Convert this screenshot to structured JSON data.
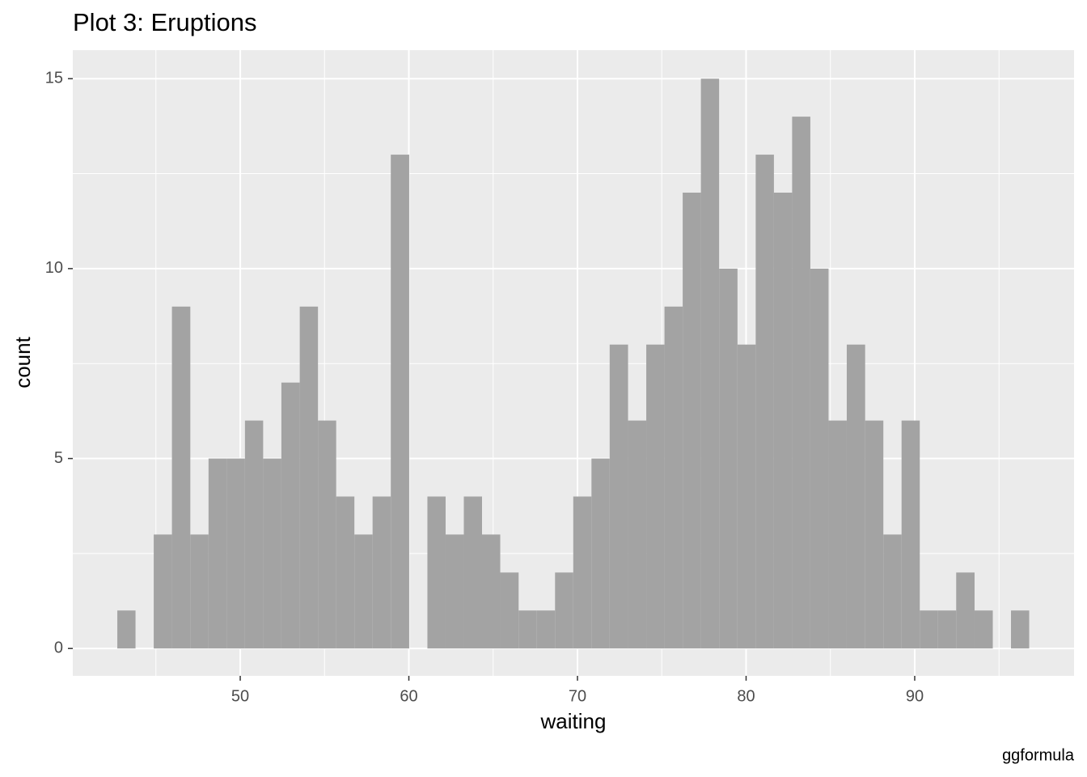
{
  "chart_data": {
    "type": "histogram",
    "title": "Plot 3: Eruptions",
    "x_label": "waiting",
    "y_label": "count",
    "caption": "ggformula",
    "bins": [
      42.71,
      43.79,
      44.87,
      45.95,
      47.04,
      48.12,
      49.2,
      50.28,
      51.36,
      52.44,
      53.53,
      54.61,
      55.69,
      56.77,
      57.85,
      58.93,
      60.02,
      61.1,
      62.18,
      63.26,
      64.34,
      65.42,
      66.51,
      67.59,
      68.67,
      69.75,
      70.83,
      71.91,
      73.0,
      74.08,
      75.16,
      76.24,
      77.32,
      78.4,
      79.49,
      80.57,
      81.65,
      82.73,
      83.81,
      84.89,
      85.97,
      87.06,
      88.14,
      89.22,
      90.3,
      91.38,
      92.46,
      93.55,
      94.63,
      95.71,
      96.79
    ],
    "values": [
      1,
      0,
      3,
      9,
      3,
      5,
      5,
      6,
      5,
      7,
      9,
      6,
      4,
      3,
      4,
      13,
      0,
      4,
      3,
      4,
      3,
      2,
      1,
      1,
      2,
      4,
      5,
      8,
      6,
      8,
      9,
      12,
      15,
      10,
      8,
      13,
      12,
      14,
      10,
      6,
      8,
      6,
      3,
      6,
      1,
      1,
      2,
      1,
      0,
      1
    ],
    "color": "#a3a3a3",
    "xlim": [
      40.07,
      99.45
    ],
    "xticks": [
      50,
      60,
      70,
      80,
      90
    ],
    "xminor": [
      45,
      55,
      65,
      75,
      85,
      95
    ],
    "ylim": [
      -0.72,
      15.75
    ],
    "yticks": [
      0,
      5,
      10,
      15
    ],
    "yminor": [
      2.5,
      7.5,
      12.5
    ],
    "grid": true
  }
}
